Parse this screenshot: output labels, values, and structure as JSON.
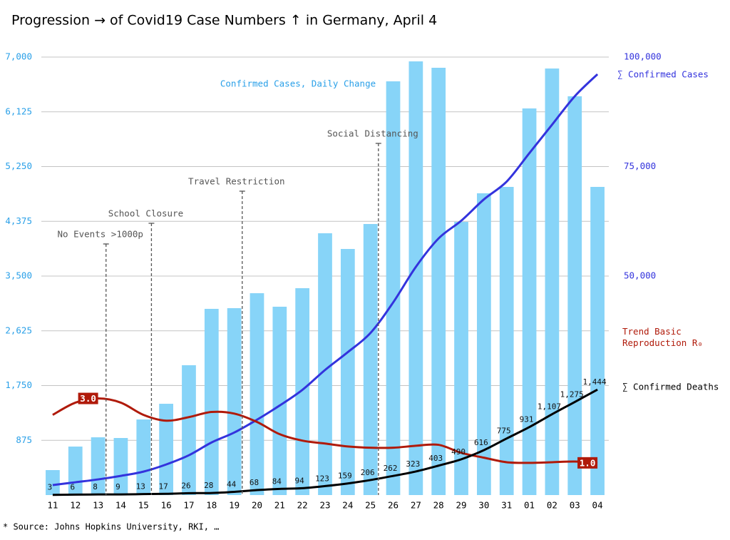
{
  "chart_data": {
    "type": "bar",
    "title": "Progression → of Covid19 Case Numbers ↑ in Germany, April 4",
    "source": "* Source: Johns Hopkins University, RKI, …",
    "categories": [
      "11",
      "12",
      "13",
      "14",
      "15",
      "16",
      "17",
      "18",
      "19",
      "20",
      "21",
      "22",
      "23",
      "24",
      "25",
      "26",
      "27",
      "28",
      "29",
      "30",
      "31",
      "01",
      "02",
      "03",
      "04"
    ],
    "ylim": [
      0,
      7000
    ],
    "yticks": [
      875,
      {
        "value": 1750,
        "label": "1,750"
      },
      {
        "value": 2625,
        "label": "2,625"
      },
      {
        "value": 3500,
        "label": "3,500"
      },
      {
        "value": 4375,
        "label": "4,375"
      },
      {
        "value": 5250,
        "label": "5,250"
      },
      {
        "value": 6125,
        "label": "6,125"
      },
      {
        "value": 7000,
        "label": "7,000"
      }
    ],
    "y2lim": [
      0,
      100000
    ],
    "y2ticks": [
      {
        "value": 50000,
        "label": "50,000"
      },
      {
        "value": 75000,
        "label": "75,000"
      },
      {
        "value": 100000,
        "label": "100,000"
      }
    ],
    "y3lim": [
      0,
      6000
    ],
    "y4lim": [
      0,
      13.6
    ],
    "grid": true,
    "series": [
      {
        "name": "Confirmed Cases, Daily Change",
        "type": "bar",
        "color": "#87d4f8",
        "values": [
          399,
          775,
          923,
          912,
          1208,
          1459,
          2075,
          2976,
          2987,
          3226,
          3010,
          3306,
          4184,
          3933,
          4332,
          6612,
          6931,
          6829,
          4366,
          4823,
          4925,
          6179,
          6817,
          6373,
          4925
        ]
      },
      {
        "name": "∑ Confirmed Cases",
        "type": "line",
        "axis": "y2",
        "color": "#3333dd",
        "values": [
          2272,
          2921,
          3571,
          4382,
          5356,
          6979,
          9089,
          12010,
          14282,
          17204,
          20450,
          24020,
          28565,
          32622,
          37004,
          43983,
          52098,
          58590,
          62648,
          67517,
          71574,
          78066,
          84558,
          91050,
          96082
        ]
      },
      {
        "name": "Trend Basic Reproduction R₀",
        "type": "line",
        "axis": "y4",
        "color": "#b01a0a",
        "values": [
          2.49,
          2.87,
          3.0,
          2.87,
          2.49,
          2.31,
          2.42,
          2.58,
          2.53,
          2.27,
          1.89,
          1.69,
          1.6,
          1.51,
          1.47,
          1.47,
          1.53,
          1.56,
          1.31,
          1.16,
          1.02,
          1.0,
          1.02,
          1.04,
          1.0
        ],
        "value_labels": [
          null,
          null,
          "3.0",
          null,
          null,
          null,
          null,
          null,
          null,
          null,
          null,
          null,
          null,
          null,
          null,
          null,
          null,
          null,
          null,
          null,
          null,
          null,
          null,
          null,
          "1.0"
        ]
      },
      {
        "name": "∑ Confirmed Deaths",
        "type": "line",
        "axis": "y3",
        "color": "#000000",
        "values": [
          3,
          6,
          8,
          9,
          13,
          17,
          26,
          28,
          44,
          68,
          84,
          94,
          123,
          159,
          206,
          262,
          323,
          403,
          490,
          616,
          775,
          931,
          1107,
          1275,
          1444
        ],
        "value_labels": [
          "3",
          "6",
          "8",
          "9",
          "13",
          "17",
          "26",
          "28",
          "44",
          "68",
          "84",
          "94",
          "123",
          "159",
          "206",
          "262",
          "323",
          "403",
          "490",
          "616",
          "775",
          "931",
          "1,107",
          "1,275",
          "1,444"
        ]
      }
    ],
    "annotations": [
      {
        "text": "No Events >1000p",
        "category": "13"
      },
      {
        "text": "School Closure",
        "category": "15"
      },
      {
        "text": "Travel Restriction",
        "category": "19"
      },
      {
        "text": "Social Distancing",
        "category": "25"
      }
    ]
  }
}
